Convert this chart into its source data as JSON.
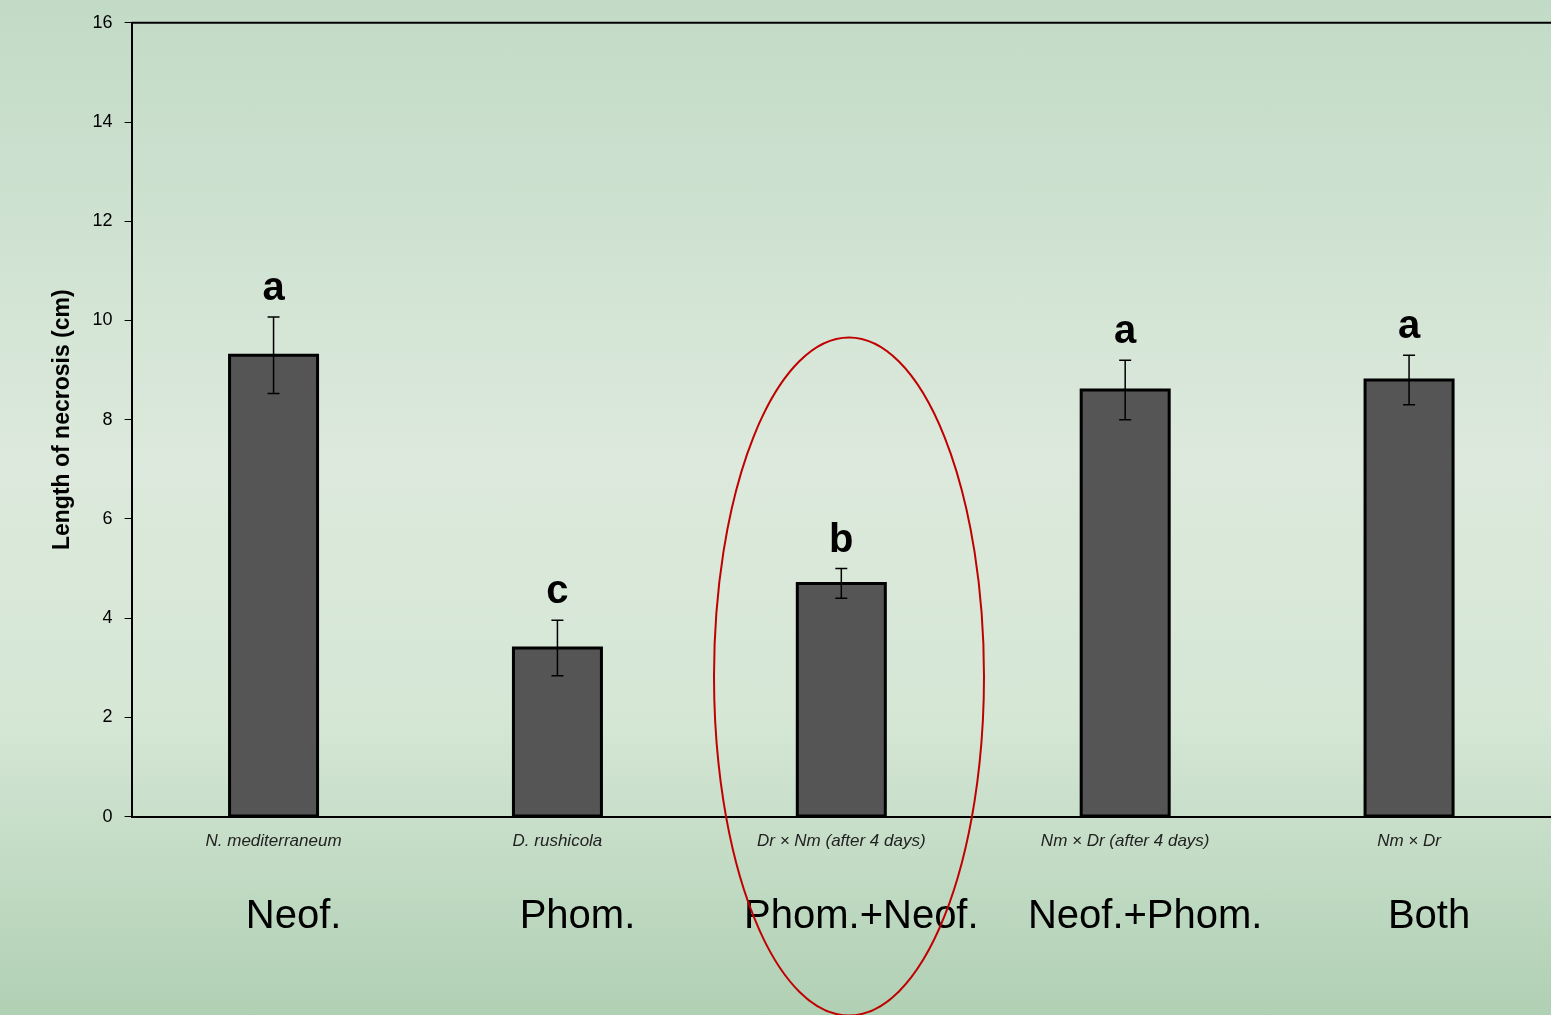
{
  "chart_data": {
    "type": "bar",
    "ylabel": "Length of necrosis (cm)",
    "categories": [
      "N. mediterraneum",
      "D. rushicola",
      "Dr × Nm (after 4 days)",
      "Nm × Dr (after 4 days)",
      "Nm × Dr"
    ],
    "values": [
      9.3,
      3.4,
      4.7,
      8.6,
      8.8
    ],
    "color": "#555555",
    "errors": [
      0.77,
      0.56,
      0.3,
      0.6,
      0.5
    ],
    "ylim": [
      0,
      16
    ],
    "yticks": [
      0,
      2,
      4,
      6,
      8,
      10,
      12,
      14,
      16
    ],
    "grid": false,
    "legend": false,
    "annotations": [
      {
        "text": "a",
        "x": "N. mediterraneum",
        "y": 10.07
      },
      {
        "text": "c",
        "x": "D. rushicola",
        "y": 3.96
      },
      {
        "text": "b",
        "x": "Dr × Nm (after 4 days)",
        "y": 5.0
      },
      {
        "text": "a",
        "x": "Nm × Dr (after 4 days)",
        "y": 9.2
      },
      {
        "text": "a",
        "x": "Nm × Dr",
        "y": 9.3
      },
      "Neof.",
      "Phom.",
      "Phom.+Neof.",
      "Neof.+Phom.",
      "Both"
    ]
  }
}
